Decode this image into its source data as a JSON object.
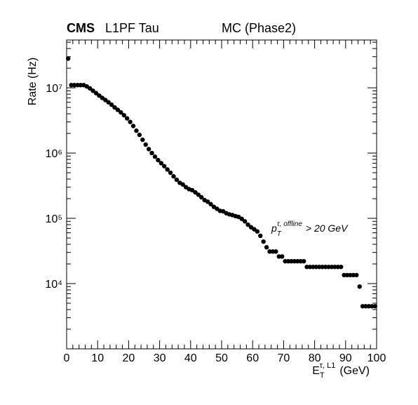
{
  "chart_data": {
    "type": "scatter",
    "title": {
      "experiment": "CMS",
      "label": "L1PF Tau",
      "sample": "MC (Phase2)"
    },
    "ylabel": "Rate (Hz)",
    "xlabel": {
      "base": "E",
      "sub": "T",
      "sup": "τ, L1",
      "unit": "(GeV)"
    },
    "annotation": {
      "base": "p",
      "sub": "T",
      "sup": "τ, offline",
      "rest": "> 20 GeV"
    },
    "color": "#000000",
    "log_y": true,
    "xlim": [
      0,
      100
    ],
    "xticks": [
      0,
      10,
      20,
      30,
      40,
      50,
      60,
      70,
      80,
      90,
      100
    ],
    "ylim": [
      1000,
      54000000
    ],
    "yticks": [
      {
        "value": 10000,
        "label": "10⁴"
      },
      {
        "value": 100000,
        "label": "10⁵"
      },
      {
        "value": 1000000,
        "label": "10⁶"
      },
      {
        "value": 10000000,
        "label": "10⁷"
      }
    ],
    "x": [
      0.5,
      1.5,
      2.5,
      3.5,
      4.5,
      5.5,
      6.5,
      7.5,
      8.5,
      9.5,
      10.5,
      11.5,
      12.5,
      13.5,
      14.5,
      15.5,
      16.5,
      17.5,
      18.5,
      19.5,
      20.5,
      21.5,
      22.5,
      23.5,
      24.5,
      25.5,
      26.5,
      27.5,
      28.5,
      29.5,
      30.5,
      31.5,
      32.5,
      33.5,
      34.5,
      35.5,
      36.5,
      37.5,
      38.5,
      39.5,
      40.5,
      41.5,
      42.5,
      43.5,
      44.5,
      45.5,
      46.5,
      47.5,
      48.5,
      49.5,
      50.5,
      51.5,
      52.5,
      53.5,
      54.5,
      55.5,
      56.5,
      57.5,
      58.5,
      59.5,
      60.5,
      61.5,
      62.5,
      63.5,
      64.5,
      65.5,
      66.5,
      67.5,
      68.5,
      69.5,
      70.5,
      71.5,
      72.5,
      73.5,
      74.5,
      75.5,
      76.5,
      77.5,
      78.5,
      79.5,
      80.5,
      81.5,
      82.5,
      83.5,
      84.5,
      85.5,
      86.5,
      87.5,
      88.5,
      89.5,
      90.5,
      91.5,
      92.5,
      93.5,
      94.5,
      95.5,
      96.5,
      97.5,
      98.5,
      99.5
    ],
    "values": [
      28000000,
      11000000,
      11000000,
      11000000,
      11000000,
      11000000,
      10500000,
      9800000,
      9000000,
      8300000,
      7600000,
      7000000,
      6500000,
      6000000,
      5500000,
      5000000,
      4600000,
      4200000,
      3800000,
      3400000,
      3000000,
      2600000,
      2200000,
      1900000,
      1600000,
      1350000,
      1150000,
      1000000,
      880000,
      780000,
      700000,
      630000,
      560000,
      500000,
      440000,
      390000,
      350000,
      330000,
      300000,
      280000,
      270000,
      250000,
      230000,
      210000,
      190000,
      180000,
      165000,
      150000,
      140000,
      130000,
      128000,
      120000,
      115000,
      112000,
      108000,
      105000,
      98000,
      90000,
      80000,
      73000,
      68000,
      63000,
      54000,
      44000,
      36000,
      31000,
      31000,
      31000,
      26000,
      26000,
      22000,
      22000,
      22000,
      22000,
      22000,
      22000,
      22000,
      18000,
      18000,
      18000,
      18000,
      18000,
      18000,
      18000,
      18000,
      18000,
      18000,
      18000,
      18000,
      13500,
      13500,
      13500,
      13500,
      13500,
      9000,
      4500,
      4500,
      4500,
      4500,
      4500
    ]
  }
}
